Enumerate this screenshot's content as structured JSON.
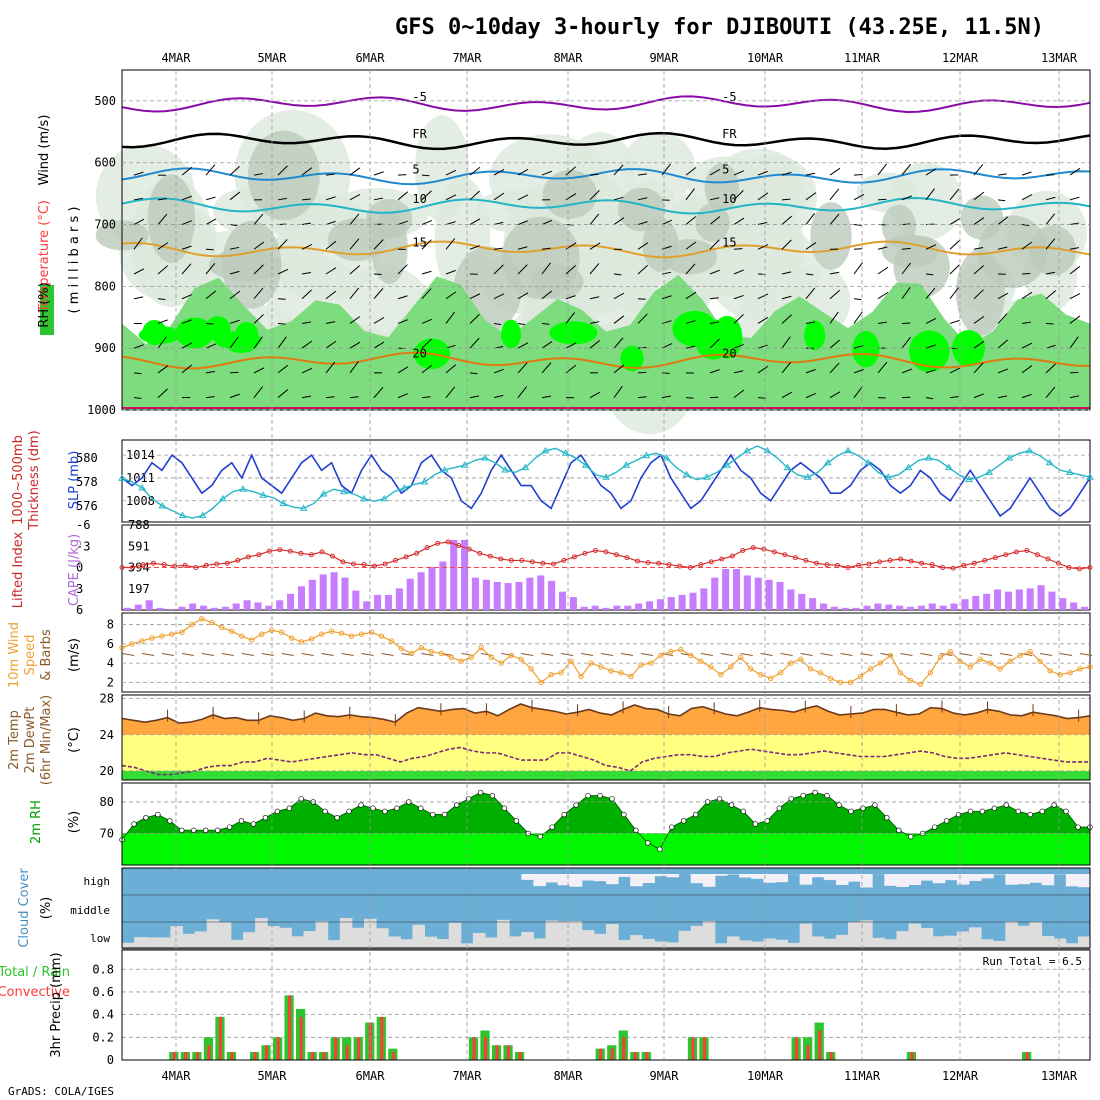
{
  "title": "GFS 0~10day 3-hourly for DJIBOUTI (43.25E, 11.5N)",
  "credit": "GrADS: COLA/IGES",
  "dates": [
    "4MAR",
    "5MAR",
    "6MAR",
    "7MAR",
    "8MAR",
    "9MAR",
    "10MAR",
    "11MAR",
    "12MAR",
    "13MAR"
  ],
  "colors": {
    "dark_green": "#00b000",
    "light_green": "#00ff00",
    "rain_green": "#2ec42e",
    "rain_red": "#ff3b3b",
    "sky_blue": "#6baed6",
    "cloud_grey": "#dddddd",
    "cape_purple": "#c77dff",
    "slp_blue": "#1f3fd1",
    "thick_cyan": "#25b6c9",
    "temp_orange": "#ffa640",
    "dew_yellow": "#ffff80",
    "wind_orange": "#f0a030"
  },
  "labels": {
    "p_wind": "Wind (m/s)",
    "p_temp": "Temperature (°C)",
    "p_rh": "RH (%)",
    "p_mb": "( m i l l i b a r s )",
    "slp": "SLP (mb)",
    "thick1": "1000~500mb",
    "thick2": "Thickness (dm)",
    "li": "Lifted Index",
    "cape": "CAPE (J/kg)",
    "w1": "10m Wind",
    "w2": "Speed",
    "w3": "& Barbs",
    "w_unit": "(m/s)",
    "t1": "2m Temp",
    "t2": "2m DewPt",
    "t3": "(6hr Min/Max)",
    "t_unit": "(°C)",
    "rh1": "2m RH",
    "rh_unit": "(%)",
    "cc1": "Cloud Cover",
    "cc_unit": "(%)",
    "pr1": "Total / Rain",
    "pr2": "Convective",
    "pr3": "3hr Precip (mm)",
    "run_total": "Run Total = 6.5",
    "cloud_high": "high",
    "cloud_middle": "middle",
    "cloud_low": "low",
    "iso_fr": "FR",
    "iso_m5": "-5",
    "iso_5": "5",
    "iso_10": "10",
    "iso_15": "15",
    "iso_20": "20"
  },
  "chart_data": [
    {
      "panel": "pressure_cross_section",
      "type": "heatmap",
      "y_ticks": [
        500,
        600,
        700,
        800,
        900,
        1000
      ],
      "ylabel": "(millibars)",
      "isotherms": [
        {
          "label": "-5",
          "p": 505
        },
        {
          "label": "FR",
          "p": 565
        },
        {
          "label": "5",
          "p": 622
        },
        {
          "label": "10",
          "p": 670
        },
        {
          "label": "15",
          "p": 740
        },
        {
          "label": "20",
          "p": 920
        }
      ]
    },
    {
      "panel": "slp_thickness",
      "type": "line",
      "slp_ticks": [
        1008,
        1011,
        1014
      ],
      "thick_ticks": [
        576,
        578,
        580
      ],
      "series": [
        {
          "name": "SLP (mb)",
          "values": [
            1011,
            1010,
            1011,
            1013,
            1012,
            1014,
            1013,
            1011,
            1009,
            1010,
            1012,
            1013,
            1011,
            1014,
            1011,
            1010,
            1009,
            1011,
            1013,
            1014,
            1012,
            1013,
            1010,
            1009,
            1012,
            1014,
            1012,
            1011,
            1009,
            1010,
            1013,
            1014,
            1012,
            1011,
            1008,
            1007,
            1009,
            1012,
            1014,
            1012,
            1010,
            1010,
            1008,
            1007,
            1010,
            1013,
            1014,
            1012,
            1010,
            1009,
            1007,
            1008,
            1011,
            1013,
            1014,
            1011,
            1009,
            1007,
            1008,
            1010,
            1012,
            1014,
            1012,
            1011,
            1009,
            1008,
            1010,
            1012,
            1013,
            1012,
            1011,
            1009,
            1009,
            1010,
            1012,
            1013,
            1012,
            1010,
            1009,
            1010,
            1012,
            1011,
            1009,
            1008,
            1010,
            1012,
            1010,
            1008,
            1006,
            1007,
            1009,
            1011,
            1009,
            1007,
            1006,
            1007,
            1009,
            1011
          ]
        },
        {
          "name": "Thickness (dm)",
          "values": [
            578.3,
            578.0,
            577.5,
            576.6,
            576.0,
            575.6,
            575.2,
            575.0,
            575.2,
            575.8,
            576.6,
            577.2,
            577.4,
            577.2,
            576.9,
            576.7,
            576.2,
            575.9,
            575.8,
            576.2,
            577.0,
            577.4,
            577.2,
            577.0,
            576.6,
            576.4,
            576.6,
            577.2,
            577.5,
            577.8,
            578.0,
            578.6,
            579.0,
            579.2,
            579.4,
            579.8,
            580.0,
            579.6,
            579.0,
            578.8,
            579.2,
            580.0,
            580.6,
            580.8,
            580.4,
            580.0,
            579.4,
            578.6,
            578.4,
            578.8,
            579.4,
            579.8,
            580.2,
            580.4,
            580.0,
            579.2,
            578.6,
            578.2,
            578.4,
            578.8,
            579.4,
            580.0,
            580.6,
            581.0,
            580.6,
            580.0,
            579.2,
            578.6,
            578.4,
            578.8,
            579.6,
            580.2,
            580.6,
            580.2,
            579.6,
            578.8,
            578.4,
            578.6,
            579.2,
            579.8,
            580.0,
            579.8,
            579.2,
            578.6,
            578.2,
            578.4,
            578.8,
            579.4,
            580.0,
            580.4,
            580.6,
            580.2,
            579.6,
            579.0,
            578.8,
            578.6,
            578.4
          ]
        }
      ]
    },
    {
      "panel": "lifted_index_cape",
      "type": "bar",
      "li_ticks": [
        -6,
        -3,
        0,
        3,
        6
      ],
      "cape_ticks": [
        197,
        394,
        591,
        788
      ],
      "series": [
        {
          "name": "CAPE (J/kg)",
          "values": [
            20,
            50,
            90,
            20,
            10,
            30,
            60,
            40,
            20,
            30,
            60,
            90,
            70,
            40,
            90,
            150,
            220,
            280,
            330,
            350,
            300,
            180,
            80,
            140,
            140,
            200,
            290,
            350,
            400,
            450,
            650,
            650,
            300,
            280,
            260,
            250,
            260,
            300,
            320,
            270,
            170,
            120,
            30,
            40,
            20,
            40,
            40,
            60,
            80,
            100,
            120,
            140,
            160,
            200,
            300,
            380,
            380,
            320,
            300,
            280,
            260,
            190,
            150,
            110,
            60,
            30,
            20,
            20,
            40,
            60,
            50,
            40,
            30,
            40,
            60,
            40,
            60,
            100,
            130,
            150,
            190,
            170,
            190,
            200,
            230,
            170,
            110,
            70,
            30
          ]
        },
        {
          "name": "Lifted Index",
          "values": [
            0,
            0,
            -0.4,
            -0.6,
            -0.4,
            -0.2,
            -0.3,
            0,
            -0.3,
            -0.5,
            -0.6,
            -1,
            -1.5,
            -1.8,
            -2.3,
            -2.5,
            -2.3,
            -2,
            -1.8,
            -2.2,
            -1.6,
            -0.8,
            -0.5,
            -0.4,
            -0.2,
            -0.5,
            -1,
            -1.5,
            -2,
            -2.8,
            -3.4,
            -3.6,
            -3.1,
            -2.6,
            -2,
            -1.6,
            -1.2,
            -1,
            -1,
            -0.8,
            -0.6,
            -0.5,
            -1,
            -1.5,
            -2,
            -2.4,
            -2.2,
            -1.8,
            -1.4,
            -0.9,
            -0.7,
            -0.6,
            -0.4,
            -0.2,
            0,
            -0.4,
            -0.8,
            -1.2,
            -1.6,
            -2.4,
            -2.8,
            -2.6,
            -2.2,
            -1.8,
            -1.4,
            -1,
            -0.6,
            -0.4,
            -0.3,
            0,
            -0.3,
            -0.5,
            -0.8,
            -1,
            -1.2,
            -0.9,
            -0.6,
            -0.4,
            0,
            0.1,
            -0.3,
            -0.6,
            -1,
            -1.4,
            -1.8,
            -2.2,
            -2.4,
            -1.8,
            -1.2,
            -0.6,
            0,
            0.2,
            0
          ]
        }
      ]
    },
    {
      "panel": "wind_10m",
      "type": "line",
      "y_ticks": [
        2,
        4,
        6,
        8
      ],
      "ylabel": "(m/s)",
      "series": [
        {
          "name": "10m Wind Speed",
          "values": [
            5.6,
            6,
            6.3,
            6.6,
            6.8,
            7,
            7.2,
            8,
            8.6,
            8.2,
            7.7,
            7.3,
            6.8,
            6.4,
            7,
            7.4,
            7.2,
            6.6,
            6.2,
            6.5,
            7,
            7.3,
            7.1,
            6.8,
            7,
            7.2,
            6.8,
            6.3,
            5.5,
            5,
            5.6,
            5.2,
            5,
            4.6,
            4.2,
            4.6,
            5.6,
            4.6,
            4,
            4.8,
            4.4,
            3.4,
            2,
            2.8,
            3,
            4.2,
            2.6,
            4,
            3.6,
            3.2,
            3,
            2.6,
            3.8,
            4,
            4.8,
            5.2,
            5.4,
            4.8,
            4.2,
            3.6,
            2.8,
            3.6,
            4.6,
            3.4,
            2.8,
            2.4,
            3,
            4,
            4.4,
            3.4,
            3,
            2.4,
            2,
            2,
            2.6,
            3.4,
            4,
            4.8,
            3,
            2.2,
            1.8,
            3,
            4.6,
            5.2,
            4.2,
            3.6,
            4.4,
            4,
            3.4,
            4.2,
            4.8,
            5.2,
            4.2,
            3.2,
            2.8,
            3,
            3.4,
            3.6
          ]
        }
      ]
    },
    {
      "panel": "temp_2m",
      "type": "area",
      "y_ticks": [
        20,
        24,
        28
      ],
      "ylabel": "(°C)",
      "series": [
        {
          "name": "2m Temp",
          "values": [
            25.8,
            25.6,
            25.4,
            25.6,
            25.9,
            25.3,
            25.4,
            25.7,
            26.2,
            25.8,
            25.9,
            25.6,
            25.6,
            26.1,
            25.9,
            25.6,
            25.8,
            26.4,
            26.1,
            26,
            26.2,
            26,
            25.9,
            25.7,
            25.4,
            26.4,
            27,
            26.8,
            26.6,
            26.8,
            26.9,
            26.4,
            26.6,
            26.1,
            26.8,
            27.4,
            27,
            26.8,
            26.6,
            26.3,
            26.5,
            26.8,
            26.4,
            26.2,
            26.8,
            27.3,
            26.9,
            26.8,
            26.3,
            26.1,
            26.9,
            27.1,
            26.7,
            26.3,
            26.1,
            26.5,
            27,
            26.8,
            26.7,
            26.5,
            26.9,
            27.2,
            26.6,
            26.2,
            26.3,
            26.4,
            26.8,
            26.8,
            26.5,
            26.2,
            26.3,
            27,
            26.9,
            26.4,
            26.2,
            26.4,
            26.8,
            26.6,
            26.2,
            26.1,
            26.5,
            26.3,
            26.1,
            25.8,
            25.9,
            26.1
          ]
        },
        {
          "name": "2m DewPt",
          "values": [
            20.6,
            20.4,
            20,
            19.6,
            19.6,
            19.8,
            20,
            20.4,
            20.6,
            20.6,
            21,
            21,
            21.4,
            21.2,
            21,
            21.2,
            21.4,
            21.6,
            21.8,
            22,
            21.8,
            21.8,
            21.4,
            21,
            21.4,
            21.6,
            22,
            22.4,
            22.6,
            22.2,
            22,
            22,
            21.6,
            21.2,
            21.2,
            21.2,
            22,
            22,
            21.6,
            21.2,
            20.6,
            20.4,
            20,
            21,
            21.4,
            21.6,
            21.8,
            21.8,
            21.6,
            21.6,
            22,
            22.2,
            22.4,
            22.2,
            22,
            21.8,
            21.8,
            22,
            22.2,
            22,
            21.8,
            21.6,
            21.6,
            21.6,
            21.8,
            22,
            22.2,
            22,
            21.6,
            21.4,
            21.4,
            21.6,
            21.8,
            22,
            21.8,
            21.6,
            21.4,
            21.2,
            21,
            21,
            21
          ]
        }
      ]
    },
    {
      "panel": "rh_2m",
      "type": "area",
      "y_ticks": [
        70,
        80
      ],
      "ylabel": "(%)",
      "series": [
        {
          "name": "2m RH",
          "values": [
            68,
            73,
            75,
            76,
            74,
            71,
            71,
            71,
            71,
            72,
            74,
            73,
            75,
            77,
            78,
            81,
            80,
            77,
            75,
            77,
            79,
            78,
            77,
            78,
            80,
            78,
            76,
            76,
            79,
            81,
            83,
            82,
            78,
            74,
            70,
            69,
            72,
            76,
            79,
            82,
            82,
            81,
            76,
            71,
            67,
            65,
            72,
            74,
            76,
            80,
            81,
            79,
            77,
            73,
            74,
            78,
            81,
            82,
            83,
            82,
            79,
            77,
            78,
            79,
            75,
            71,
            69,
            70,
            72,
            74,
            76,
            77,
            77,
            78,
            79,
            77,
            76,
            77,
            79,
            77,
            72,
            72
          ]
        }
      ]
    },
    {
      "panel": "cloud_cover",
      "type": "area",
      "categories": [
        "high",
        "middle",
        "low"
      ]
    },
    {
      "panel": "precip_3hr",
      "type": "bar",
      "y_ticks": [
        0,
        0.2,
        0.4,
        0.6,
        0.8
      ],
      "ylabel": "3hr Precip (mm)",
      "series": [
        {
          "name": "Total",
          "values": [
            0,
            0,
            0,
            0,
            0.07,
            0.07,
            0.07,
            0.2,
            0.38,
            0.07,
            0,
            0.07,
            0.13,
            0.2,
            0.57,
            0.45,
            0.07,
            0.07,
            0.2,
            0.2,
            0.2,
            0.33,
            0.38,
            0.1,
            0,
            0,
            0,
            0,
            0,
            0,
            0.2,
            0.26,
            0.13,
            0.13,
            0.07,
            0,
            0,
            0,
            0,
            0,
            0,
            0.1,
            0.13,
            0.26,
            0.07,
            0.07,
            0,
            0,
            0,
            0.2,
            0.2,
            0,
            0,
            0,
            0,
            0,
            0,
            0,
            0.2,
            0.2,
            0.33,
            0.07,
            0,
            0,
            0,
            0,
            0,
            0,
            0.07,
            0,
            0,
            0,
            0,
            0,
            0,
            0,
            0,
            0,
            0.07,
            0,
            0,
            0,
            0,
            0
          ]
        },
        {
          "name": "Convective",
          "values": [
            0,
            0,
            0,
            0,
            0.07,
            0.07,
            0.07,
            0.13,
            0.38,
            0.07,
            0,
            0.07,
            0.13,
            0.2,
            0.57,
            0.38,
            0.07,
            0.07,
            0.2,
            0.13,
            0.2,
            0.33,
            0.38,
            0.07,
            0,
            0,
            0,
            0,
            0,
            0,
            0.2,
            0.2,
            0.13,
            0.13,
            0.07,
            0,
            0,
            0,
            0,
            0,
            0,
            0.1,
            0.1,
            0.2,
            0.07,
            0.07,
            0,
            0,
            0,
            0.2,
            0.2,
            0,
            0,
            0,
            0,
            0,
            0,
            0,
            0.2,
            0.13,
            0.26,
            0.07,
            0,
            0,
            0,
            0,
            0,
            0,
            0.07,
            0,
            0,
            0,
            0,
            0,
            0,
            0,
            0,
            0,
            0.07,
            0,
            0,
            0,
            0,
            0
          ]
        }
      ],
      "annotations": [
        "Run Total = 6.5"
      ]
    }
  ]
}
